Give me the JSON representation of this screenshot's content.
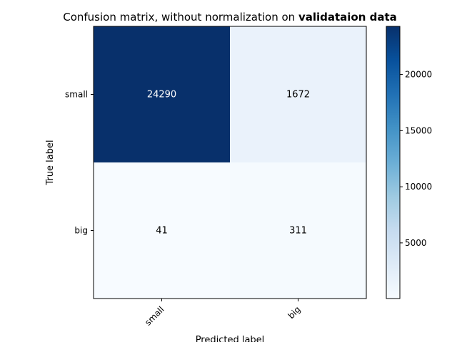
{
  "chart_data": {
    "type": "heatmap",
    "title": "Confusion matrix, without normalization on ",
    "title_emphasis": "validataion data",
    "xlabel": "Predicted label",
    "ylabel": "True label",
    "x_categories": [
      "small",
      "big"
    ],
    "y_categories": [
      "small",
      "big"
    ],
    "values": [
      [
        24290,
        1672
      ],
      [
        41,
        311
      ]
    ],
    "colormap": "Blues",
    "colorbar": {
      "min": 41,
      "max": 24290,
      "ticks": [
        5000,
        10000,
        15000,
        20000
      ],
      "tick_labels": [
        "5000",
        "10000",
        "15000",
        "20000"
      ]
    },
    "grid": false
  }
}
